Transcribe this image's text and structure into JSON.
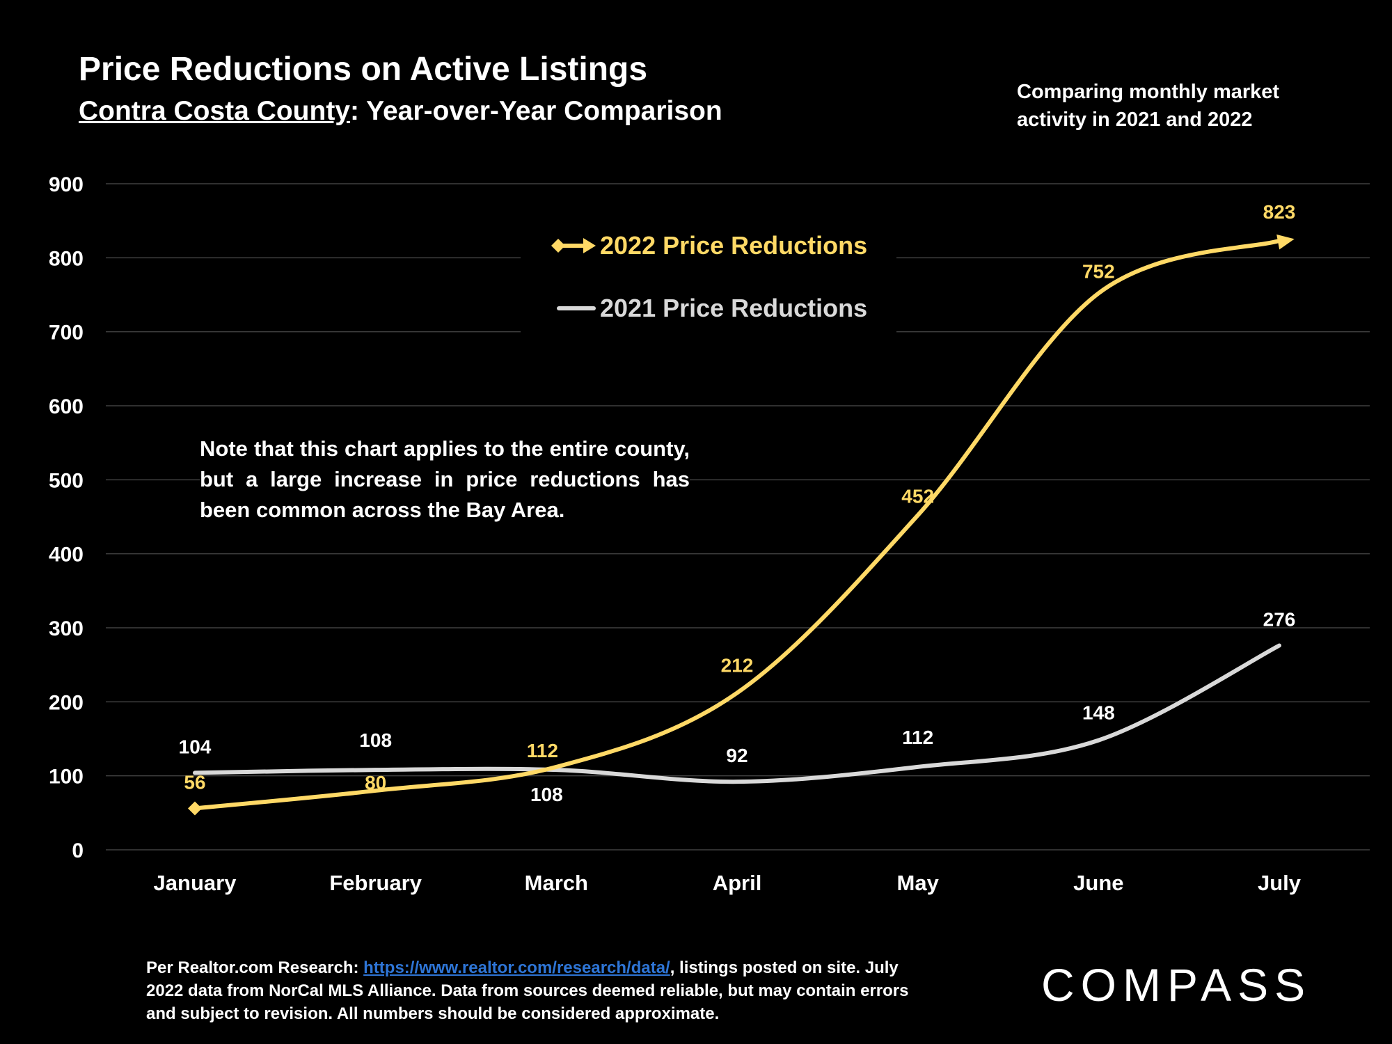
{
  "header": {
    "title": "Price Reductions on Active Listings",
    "subtitle_county": "Contra Costa County",
    "subtitle_rest": ": Year-over-Year Comparison",
    "side_note": "Comparing monthly market activity in 2021 and 2022"
  },
  "note": "Note that this chart applies to the entire county, but a large increase in price reductions has been common across the Bay Area.",
  "footer": {
    "prefix": "Per Realtor.com Research:  ",
    "link": "https://www.realtor.com/research/data/",
    "rest": ", listings posted on site. July 2022 data from NorCal MLS Alliance. Data from sources deemed reliable, but may contain errors and subject to revision. All numbers should be considered approximate."
  },
  "logo": "COMPASS",
  "colors": {
    "series_2022": "#ffd966",
    "series_2021": "#d9d9d9",
    "grid": "#404040",
    "background": "#000000"
  },
  "chart_data": {
    "type": "line",
    "categories": [
      "January",
      "February",
      "March",
      "April",
      "May",
      "June",
      "July"
    ],
    "ylim": [
      0,
      900
    ],
    "yticks": [
      0,
      100,
      200,
      300,
      400,
      500,
      600,
      700,
      800,
      900
    ],
    "grid": true,
    "legend_position": "top-center",
    "series": [
      {
        "name": "2022 Price Reductions",
        "values": [
          56,
          80,
          112,
          212,
          452,
          752,
          823
        ]
      },
      {
        "name": "2021 Price Reductions",
        "values": [
          104,
          108,
          108,
          92,
          112,
          148,
          276
        ]
      }
    ]
  }
}
